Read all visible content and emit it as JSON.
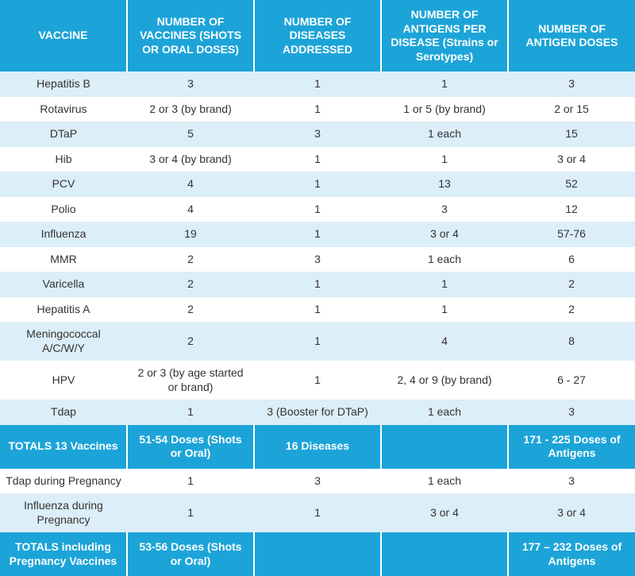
{
  "colors": {
    "header_bg": "#1ca4d8",
    "totals_bg": "#1ca4d8",
    "row_alt1": "#dceef7",
    "row_alt2": "#ffffff",
    "header_text": "#ffffff",
    "body_text": "#333333"
  },
  "columns": [
    "VACCINE",
    "NUMBER OF VACCINES (SHOTS OR ORAL DOSES)",
    "NUMBER OF DISEASES ADDRESSED",
    "NUMBER OF ANTIGENS PER DISEASE (Strains or Serotypes)",
    "NUMBER OF ANTIGEN DOSES"
  ],
  "rows": [
    [
      "Hepatitis B",
      "3",
      "1",
      "1",
      "3"
    ],
    [
      "Rotavirus",
      "2 or 3 (by brand)",
      "1",
      "1 or 5 (by brand)",
      "2 or 15"
    ],
    [
      "DTaP",
      "5",
      "3",
      "1 each",
      "15"
    ],
    [
      "Hib",
      "3 or 4 (by brand)",
      "1",
      "1",
      "3 or 4"
    ],
    [
      "PCV",
      "4",
      "1",
      "13",
      "52"
    ],
    [
      "Polio",
      "4",
      "1",
      "3",
      "12"
    ],
    [
      "Influenza",
      "19",
      "1",
      "3 or 4",
      "57-76"
    ],
    [
      "MMR",
      "2",
      "3",
      "1 each",
      "6"
    ],
    [
      "Varicella",
      "2",
      "1",
      "1",
      "2"
    ],
    [
      "Hepatitis A",
      "2",
      "1",
      "1",
      "2"
    ],
    [
      "Meningococcal A/C/W/Y",
      "2",
      "1",
      "4",
      "8"
    ],
    [
      "HPV",
      "2 or 3 (by age started or brand)",
      "1",
      "2, 4 or 9 (by brand)",
      "6 - 27"
    ],
    [
      "Tdap",
      "1",
      "3 (Booster for DTaP)",
      "1 each",
      "3"
    ]
  ],
  "totals1": [
    "TOTALS 13 Vaccines",
    "51-54 Doses (Shots or Oral)",
    "16 Diseases",
    "",
    "171 - 225 Doses of Antigens"
  ],
  "pregnancy_rows": [
    [
      "Tdap during Pregnancy",
      "1",
      "3",
      "1 each",
      "3"
    ],
    [
      "Influenza during Pregnancy",
      "1",
      "1",
      "3 or 4",
      "3 or 4"
    ]
  ],
  "totals2": [
    "TOTALS including Pregnancy Vaccines",
    "53-56 Doses (Shots or Oral)",
    "",
    "",
    "177 – 232 Doses of Antigens"
  ]
}
